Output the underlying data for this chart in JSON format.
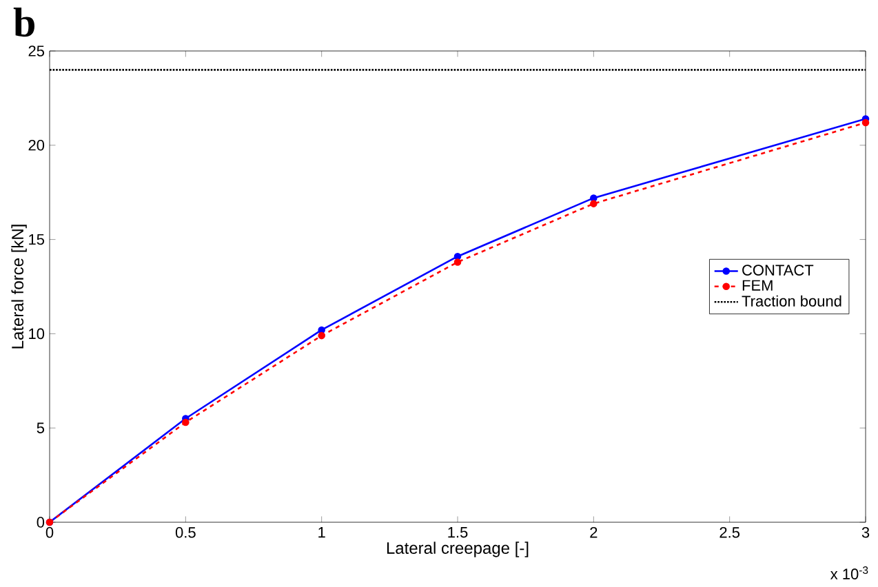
{
  "chart_data": {
    "type": "line",
    "title": "b",
    "xlabel": "Lateral creepage [-]",
    "ylabel": "Lateral force [kN]",
    "annotations": [
      "x 10$^{-3}$"
    ],
    "xlim": [
      0,
      3
    ],
    "ylim": [
      0,
      25
    ],
    "xticks": [
      0,
      0.5,
      1,
      1.5,
      2,
      2.5,
      3
    ],
    "yticks": [
      0,
      5,
      10,
      15,
      20,
      25
    ],
    "legend": "right",
    "series": [
      {
        "name": "CONTACT",
        "color": "#0000ff",
        "marker": "circle",
        "line_style": "solid",
        "x": [
          0,
          0.5,
          1,
          1.5,
          2,
          3
        ],
        "values": [
          0,
          5.5,
          10.2,
          14.1,
          17.2,
          21.4
        ]
      },
      {
        "name": "FEM",
        "color": "#ff0000",
        "marker": "circle",
        "line_style": "dashed",
        "x": [
          0,
          0.5,
          1,
          1.5,
          2,
          3
        ],
        "values": [
          0,
          5.3,
          9.9,
          13.8,
          16.9,
          21.2
        ]
      },
      {
        "name": "Traction bound",
        "color": "#000000",
        "marker": "none",
        "line_style": "dotted",
        "x": [
          0,
          3
        ],
        "values": [
          24,
          24
        ]
      }
    ]
  }
}
